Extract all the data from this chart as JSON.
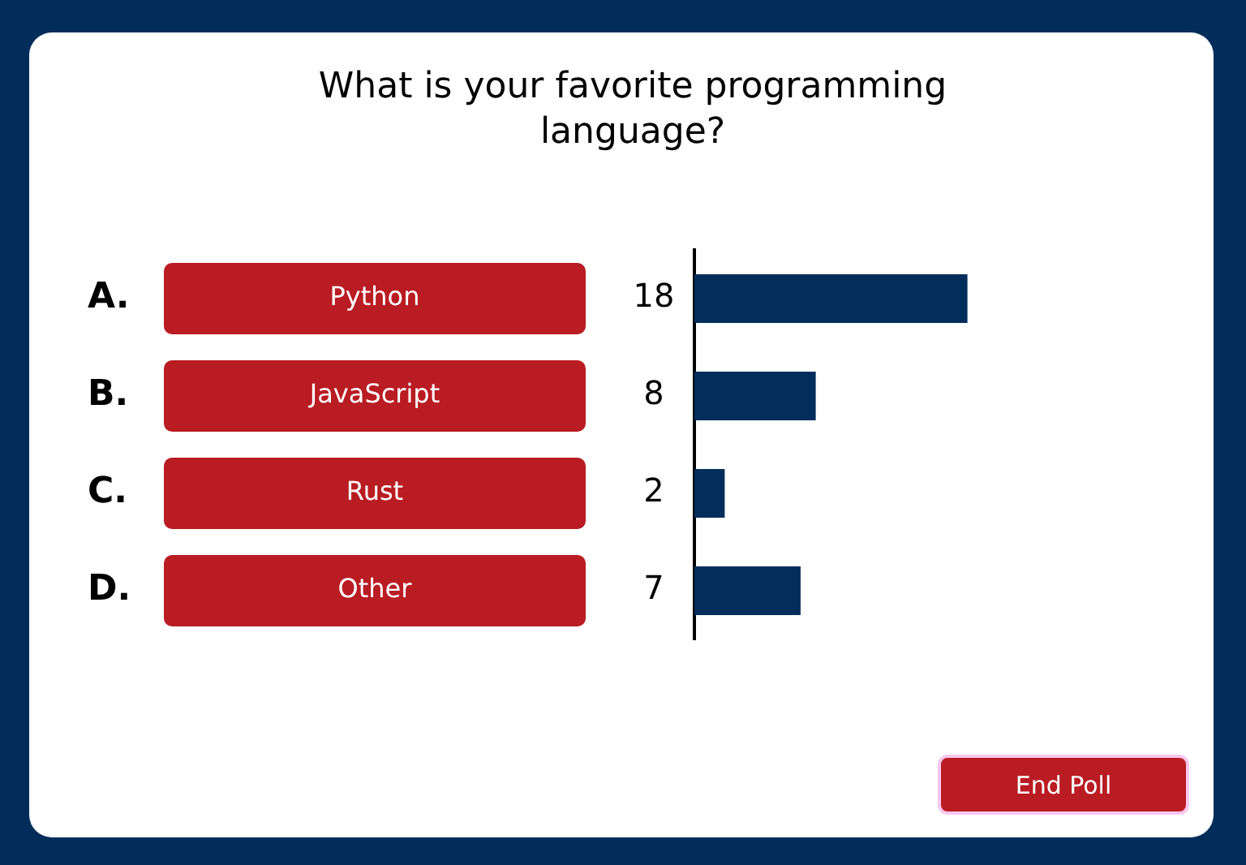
{
  "chart_data": {
    "type": "bar",
    "orientation": "horizontal",
    "title": "What is your favorite programming language?",
    "categories": [
      "Python",
      "JavaScript",
      "Rust",
      "Other"
    ],
    "values": [
      18,
      8,
      2,
      7
    ],
    "color": "#032d5a",
    "data_labels": true,
    "grid": false,
    "legend": false,
    "annotations": [
      "A.",
      "B.",
      "C.",
      "D.",
      "End Poll"
    ]
  }
}
